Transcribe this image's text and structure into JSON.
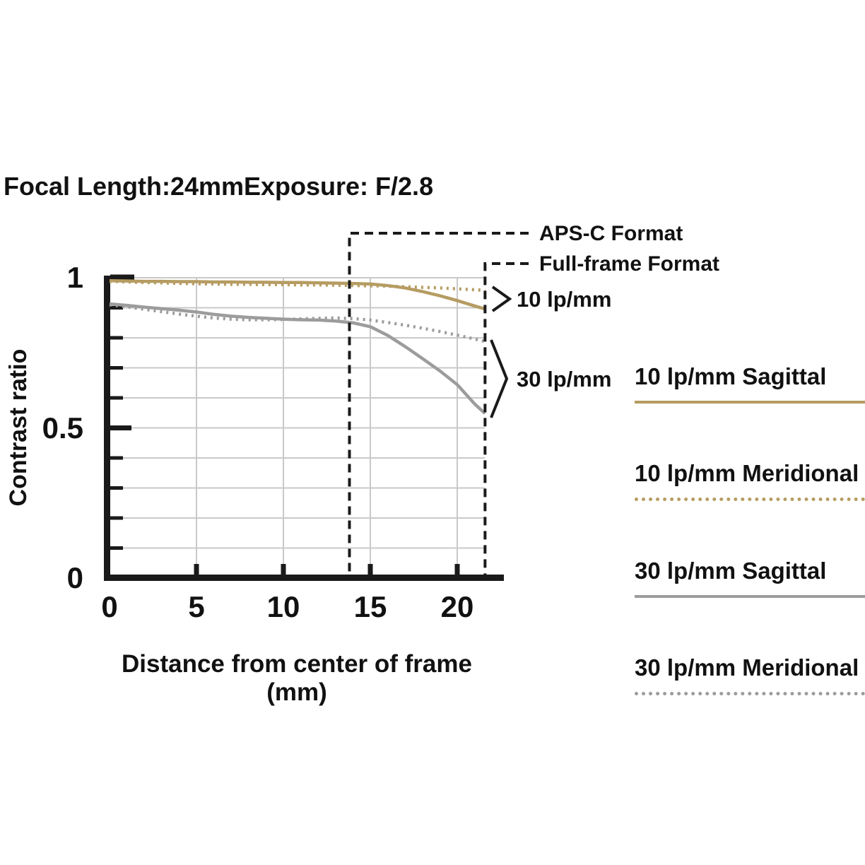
{
  "header": {
    "focal_length": "Focal Length:24mm",
    "exposure": "Exposure: F/2.8"
  },
  "colors": {
    "tan": "#b69c62",
    "gray": "#9c9c9c",
    "axis": "#1a1a1a",
    "grid": "#c9c9c9",
    "text": "#111111"
  },
  "chart_data": {
    "type": "line",
    "title": "",
    "xlabel": "Distance from center of frame (mm)",
    "ylabel": "Contrast ratio",
    "xlim": [
      0,
      21.6
    ],
    "ylim": [
      0,
      1
    ],
    "grid": true,
    "legend_position": "right",
    "x_ticks": [
      {
        "label": "0",
        "value": 0
      },
      {
        "label": "5",
        "value": 5
      },
      {
        "label": "10",
        "value": 10
      },
      {
        "label": "15",
        "value": 15
      },
      {
        "label": "20",
        "value": 20
      }
    ],
    "y_ticks": [
      {
        "label": "1",
        "value": 1
      },
      {
        "label": "0.5",
        "value": 0.5
      },
      {
        "label": "0",
        "value": 0
      }
    ],
    "y_minor_step": 0.1,
    "x": [
      0,
      1,
      2,
      3,
      4,
      5,
      6,
      7,
      8,
      9,
      10,
      11,
      12,
      13,
      14,
      15,
      16,
      17,
      18,
      19,
      20,
      21,
      21.6
    ],
    "series": [
      {
        "name": "10 lp/mm Sagittal",
        "style": "solid",
        "color": "#b69c62",
        "values": [
          0.99,
          0.989,
          0.988,
          0.988,
          0.987,
          0.987,
          0.986,
          0.986,
          0.985,
          0.985,
          0.984,
          0.984,
          0.983,
          0.982,
          0.981,
          0.979,
          0.974,
          0.966,
          0.954,
          0.94,
          0.924,
          0.906,
          0.896
        ]
      },
      {
        "name": "10 lp/mm Meridional",
        "style": "dotted",
        "color": "#b69c62",
        "values": [
          0.988,
          0.986,
          0.984,
          0.983,
          0.981,
          0.98,
          0.979,
          0.978,
          0.978,
          0.977,
          0.977,
          0.976,
          0.976,
          0.975,
          0.974,
          0.973,
          0.972,
          0.97,
          0.968,
          0.966,
          0.963,
          0.96,
          0.958
        ]
      },
      {
        "name": "30 lp/mm Sagittal",
        "style": "solid",
        "color": "#9c9c9c",
        "values": [
          0.913,
          0.908,
          0.902,
          0.897,
          0.892,
          0.886,
          0.878,
          0.872,
          0.868,
          0.865,
          0.862,
          0.86,
          0.859,
          0.856,
          0.85,
          0.837,
          0.808,
          0.771,
          0.731,
          0.69,
          0.644,
          0.58,
          0.548
        ]
      },
      {
        "name": "30 lp/mm Meridional",
        "style": "dotted",
        "color": "#9c9c9c",
        "values": [
          0.91,
          0.903,
          0.895,
          0.887,
          0.879,
          0.872,
          0.866,
          0.862,
          0.86,
          0.86,
          0.861,
          0.863,
          0.865,
          0.866,
          0.864,
          0.859,
          0.851,
          0.842,
          0.832,
          0.821,
          0.809,
          0.796,
          0.788
        ]
      }
    ],
    "annotations": {
      "apsc_format": {
        "label": "APS-C Format",
        "x": 13.8
      },
      "full_frame_format": {
        "label": "Full-frame Format",
        "x": 21.6
      },
      "group_10": {
        "label": "10 lp/mm"
      },
      "group_30": {
        "label": "30 lp/mm"
      }
    }
  }
}
